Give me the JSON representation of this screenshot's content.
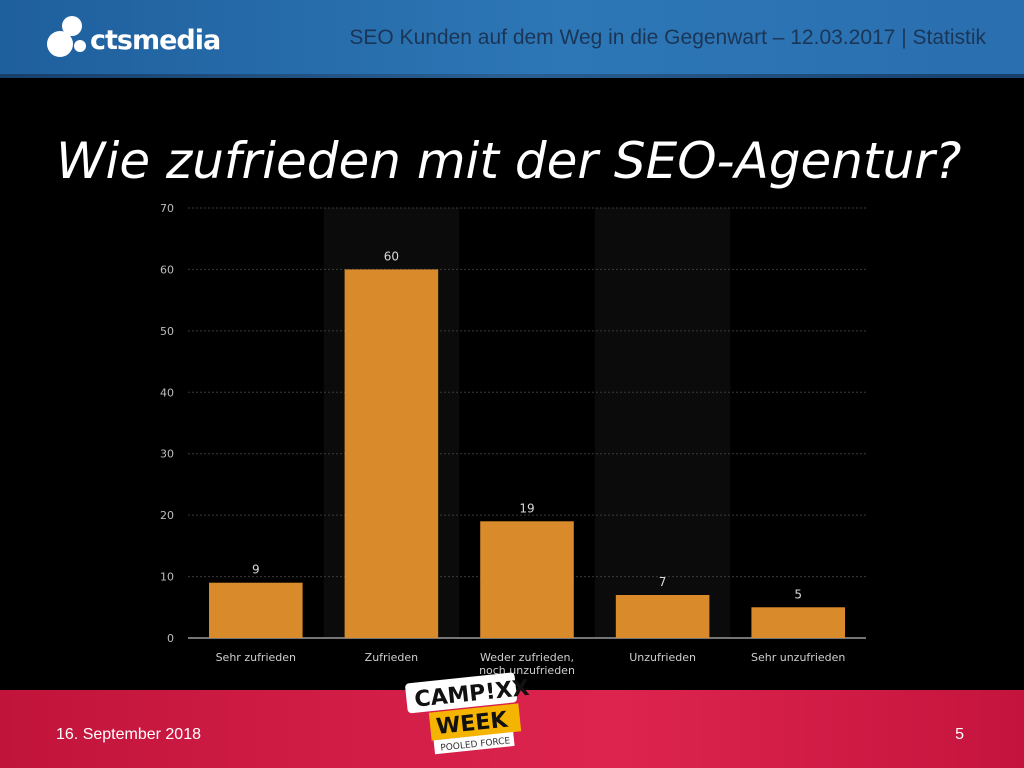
{
  "header": {
    "logo_text": "ctsmedia",
    "title": "SEO Kunden auf dem Weg in die Gegenwart – 12.03.2017 | Statistik"
  },
  "slide": {
    "title": "Wie zufrieden mit der SEO-Agentur?"
  },
  "chart_data": {
    "type": "bar",
    "title": "",
    "xlabel": "",
    "ylabel": "",
    "categories": [
      "Sehr zufrieden",
      "Zufrieden",
      "Weder zufrieden, noch unzufrieden",
      "Unzufrieden",
      "Sehr unzufrieden"
    ],
    "category_lines": [
      [
        "Sehr zufrieden"
      ],
      [
        "Zufrieden"
      ],
      [
        "Weder zufrieden,",
        "noch unzufrieden"
      ],
      [
        "Unzufrieden"
      ],
      [
        "Sehr unzufrieden"
      ]
    ],
    "values": [
      9,
      60,
      19,
      7,
      5
    ],
    "ylim": [
      0,
      70
    ],
    "yticks": [
      0,
      10,
      20,
      30,
      40,
      50,
      60,
      70
    ],
    "grid": true,
    "bar_color": "#d98a2b",
    "data_labels": true
  },
  "footer": {
    "date": "16. September 2018",
    "page": "5",
    "badge_top": "CAMP!XX",
    "badge_bottom": "WEEK",
    "badge_tag": "POOLED FORCE"
  },
  "colors": {
    "header_blue": "#2d77b6",
    "footer_red": "#dd244f",
    "bar": "#d98a2b"
  }
}
